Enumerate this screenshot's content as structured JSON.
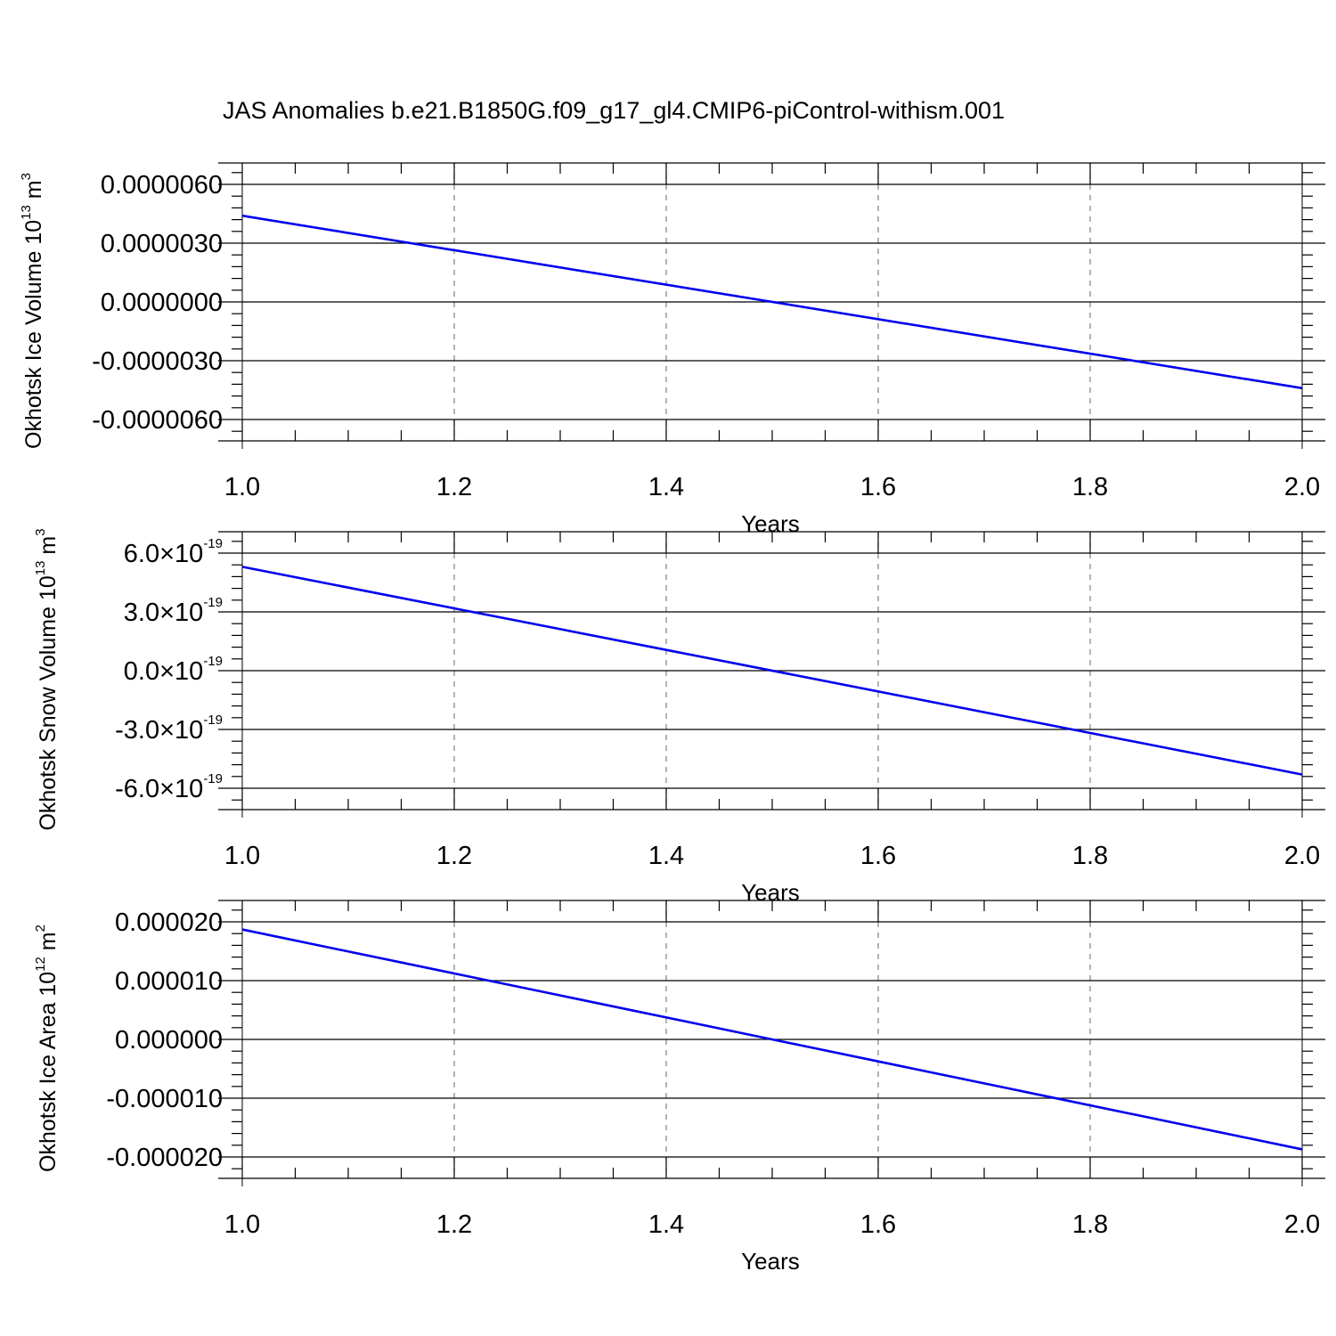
{
  "title": "JAS Anomalies b.e21.B1850G.f09_g17_gl4.CMIP6-piControl-withism.001",
  "colors": {
    "line": "#0000ee",
    "axis": "#000000",
    "grid": "#7f7f7f",
    "background": "#ffffff"
  },
  "chart_data": [
    {
      "type": "line",
      "xlabel": "Years",
      "ylabel": {
        "text": "Okhotsk Ice Volume 10",
        "exp": "13",
        "unit": " m",
        "unit_exp": "3"
      },
      "x": [
        1.0,
        2.0
      ],
      "series": [
        {
          "values": [
            4.4e-06,
            -4.4e-06
          ]
        }
      ],
      "xlim": [
        1.0,
        2.0
      ],
      "ylim": [
        -6e-06,
        6e-06
      ],
      "x_ticks": [
        "1.0",
        "1.2",
        "1.4",
        "1.6",
        "1.8",
        "2.0"
      ],
      "y_ticks": [
        {
          "mant": "-0.0000060",
          "exp": ""
        },
        {
          "mant": "-0.0000030",
          "exp": ""
        },
        {
          "mant": "0.0000000",
          "exp": ""
        },
        {
          "mant": "0.0000030",
          "exp": ""
        },
        {
          "mant": "0.0000060",
          "exp": ""
        }
      ],
      "grid": "vertical dashed at major x ticks"
    },
    {
      "type": "line",
      "xlabel": "Years",
      "ylabel": {
        "text": "Okhotsk Snow Volume 10",
        "exp": "13",
        "unit": " m",
        "unit_exp": "3"
      },
      "x": [
        1.0,
        2.0
      ],
      "series": [
        {
          "values": [
            5.3e-19,
            -5.3e-19
          ]
        }
      ],
      "xlim": [
        1.0,
        2.0
      ],
      "ylim": [
        -6e-19,
        6e-19
      ],
      "x_ticks": [
        "1.0",
        "1.2",
        "1.4",
        "1.6",
        "1.8",
        "2.0"
      ],
      "y_ticks": [
        {
          "mant": "-6.0×10",
          "exp": "-19"
        },
        {
          "mant": "-3.0×10",
          "exp": "-19"
        },
        {
          "mant": "0.0×10",
          "exp": "-19"
        },
        {
          "mant": "3.0×10",
          "exp": "-19"
        },
        {
          "mant": "6.0×10",
          "exp": "-19"
        }
      ],
      "grid": "vertical dashed at major x ticks"
    },
    {
      "type": "line",
      "xlabel": "Years",
      "ylabel": {
        "text": "Okhotsk Ice Area 10",
        "exp": "12",
        "unit": " m",
        "unit_exp": "2"
      },
      "x": [
        1.0,
        2.0
      ],
      "series": [
        {
          "values": [
            1.87e-05,
            -1.87e-05
          ]
        }
      ],
      "xlim": [
        1.0,
        2.0
      ],
      "ylim": [
        -2e-05,
        2e-05
      ],
      "x_ticks": [
        "1.0",
        "1.2",
        "1.4",
        "1.6",
        "1.8",
        "2.0"
      ],
      "y_ticks": [
        {
          "mant": "-0.000020",
          "exp": ""
        },
        {
          "mant": "-0.000010",
          "exp": ""
        },
        {
          "mant": "0.000000",
          "exp": ""
        },
        {
          "mant": "0.000010",
          "exp": ""
        },
        {
          "mant": "0.000020",
          "exp": ""
        }
      ],
      "grid": "vertical dashed at major x ticks"
    }
  ]
}
